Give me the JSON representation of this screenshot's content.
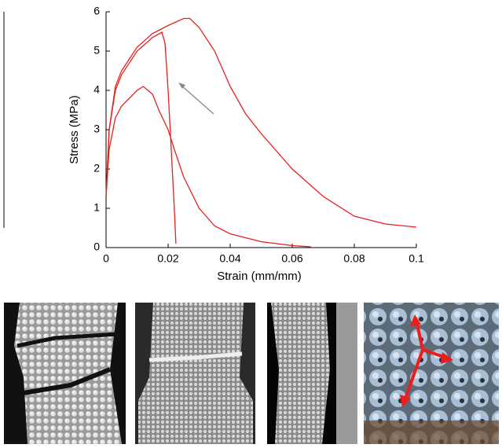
{
  "chart_data": {
    "type": "line",
    "xlabel": "Strain (mm/mm)",
    "ylabel": "Stress (MPa)",
    "series": [
      {
        "color": "#e8201c",
        "x": [
          0,
          0.001,
          0.003,
          0.005,
          0.01,
          0.015,
          0.02,
          0.025,
          0.027,
          0.03,
          0.035,
          0.04,
          0.045,
          0.05,
          0.06,
          0.07,
          0.08,
          0.09,
          0.1
        ],
        "values": [
          1.3,
          3,
          4.1,
          4.5,
          5.1,
          5.45,
          5.65,
          5.83,
          5.83,
          5.6,
          5,
          4.1,
          3.4,
          2.9,
          2.0,
          1.3,
          0.8,
          0.6,
          0.52
        ]
      },
      {
        "color": "#e8201c",
        "x": [
          0,
          0.001,
          0.003,
          0.005,
          0.01,
          0.015,
          0.018,
          0.019,
          0.02,
          0.021,
          0.022,
          0.0225
        ],
        "values": [
          1.3,
          3,
          4.0,
          4.4,
          5.0,
          5.35,
          5.48,
          5.2,
          4.0,
          2.5,
          1.0,
          0.1
        ]
      },
      {
        "color": "#e8201c",
        "x": [
          0,
          0.001,
          0.003,
          0.005,
          0.01,
          0.012,
          0.015,
          0.017,
          0.02,
          0.022,
          0.025,
          0.03,
          0.035,
          0.04,
          0.05,
          0.06,
          0.066
        ],
        "values": [
          1.3,
          2.5,
          3.3,
          3.6,
          4.0,
          4.1,
          3.9,
          3.5,
          3.0,
          2.5,
          1.8,
          1.0,
          0.55,
          0.35,
          0.15,
          0.05,
          0.02
        ]
      }
    ],
    "xlim": [
      0,
      0.1
    ],
    "xticks": [
      0,
      0.02,
      0.04,
      0.06,
      0.08,
      0.1
    ],
    "ylim": [
      0,
      6
    ],
    "yticks": [
      0,
      1,
      2,
      3,
      4,
      5,
      6
    ],
    "grid": false
  }
}
